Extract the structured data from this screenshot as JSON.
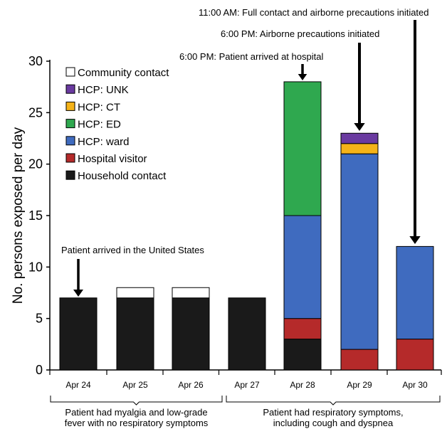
{
  "chart_data": {
    "type": "bar",
    "stacked": true,
    "title": "",
    "ylabel": "No. persons exposed per day",
    "xlabel": "",
    "ylim": [
      0,
      30
    ],
    "yticks": [
      0,
      5,
      10,
      15,
      20,
      25,
      30
    ],
    "categories": [
      "Apr 24",
      "Apr 25",
      "Apr 26",
      "Apr 27",
      "Apr 28",
      "Apr 29",
      "Apr 30"
    ],
    "series": [
      {
        "name": "Household contact",
        "color": "#1a1a1a",
        "values": [
          7,
          7,
          7,
          7,
          3,
          0,
          0
        ]
      },
      {
        "name": "Hospital visitor",
        "color": "#b52a2a",
        "values": [
          0,
          0,
          0,
          0,
          2,
          2,
          3
        ]
      },
      {
        "name": "HCP: ward",
        "color": "#3f6bbf",
        "values": [
          0,
          0,
          0,
          0,
          10,
          19,
          9
        ]
      },
      {
        "name": "HCP: ED",
        "color": "#2fa84f",
        "values": [
          0,
          0,
          0,
          0,
          13,
          0,
          0
        ]
      },
      {
        "name": "HCP: CT",
        "color": "#f5b318",
        "values": [
          0,
          0,
          0,
          0,
          0,
          1,
          0
        ]
      },
      {
        "name": "HCP: UNK",
        "color": "#6a3aa0",
        "values": [
          0,
          0,
          0,
          0,
          0,
          1,
          0
        ]
      },
      {
        "name": "Community contact",
        "color": "#ffffff",
        "values": [
          0,
          1,
          1,
          0,
          0,
          0,
          0
        ]
      }
    ],
    "legend_order": [
      "Community contact",
      "HCP: UNK",
      "HCP: CT",
      "HCP: ED",
      "HCP: ward",
      "Hospital visitor",
      "Household contact"
    ],
    "legend_position": "top-left",
    "annotations": [
      {
        "text": "Patient arrived in the United States",
        "category": "Apr 24"
      },
      {
        "text": "6:00 PM: Patient arrived at hospital",
        "category": "Apr 28"
      },
      {
        "text": "6:00 PM: Airborne precautions initiated",
        "category": "Apr 29"
      },
      {
        "text": "11:00 AM: Full contact and airborne precautions initiated",
        "category": "Apr 30"
      }
    ],
    "periods": [
      {
        "lines": [
          "Patient had myalgia and low-grade",
          "fever with no respiratory symptoms"
        ],
        "from": "Apr 24",
        "to": "Apr 26"
      },
      {
        "lines": [
          "Patient had respiratory symptoms,",
          "including cough and dyspnea"
        ],
        "from": "Apr 27",
        "to": "Apr 30"
      }
    ]
  }
}
